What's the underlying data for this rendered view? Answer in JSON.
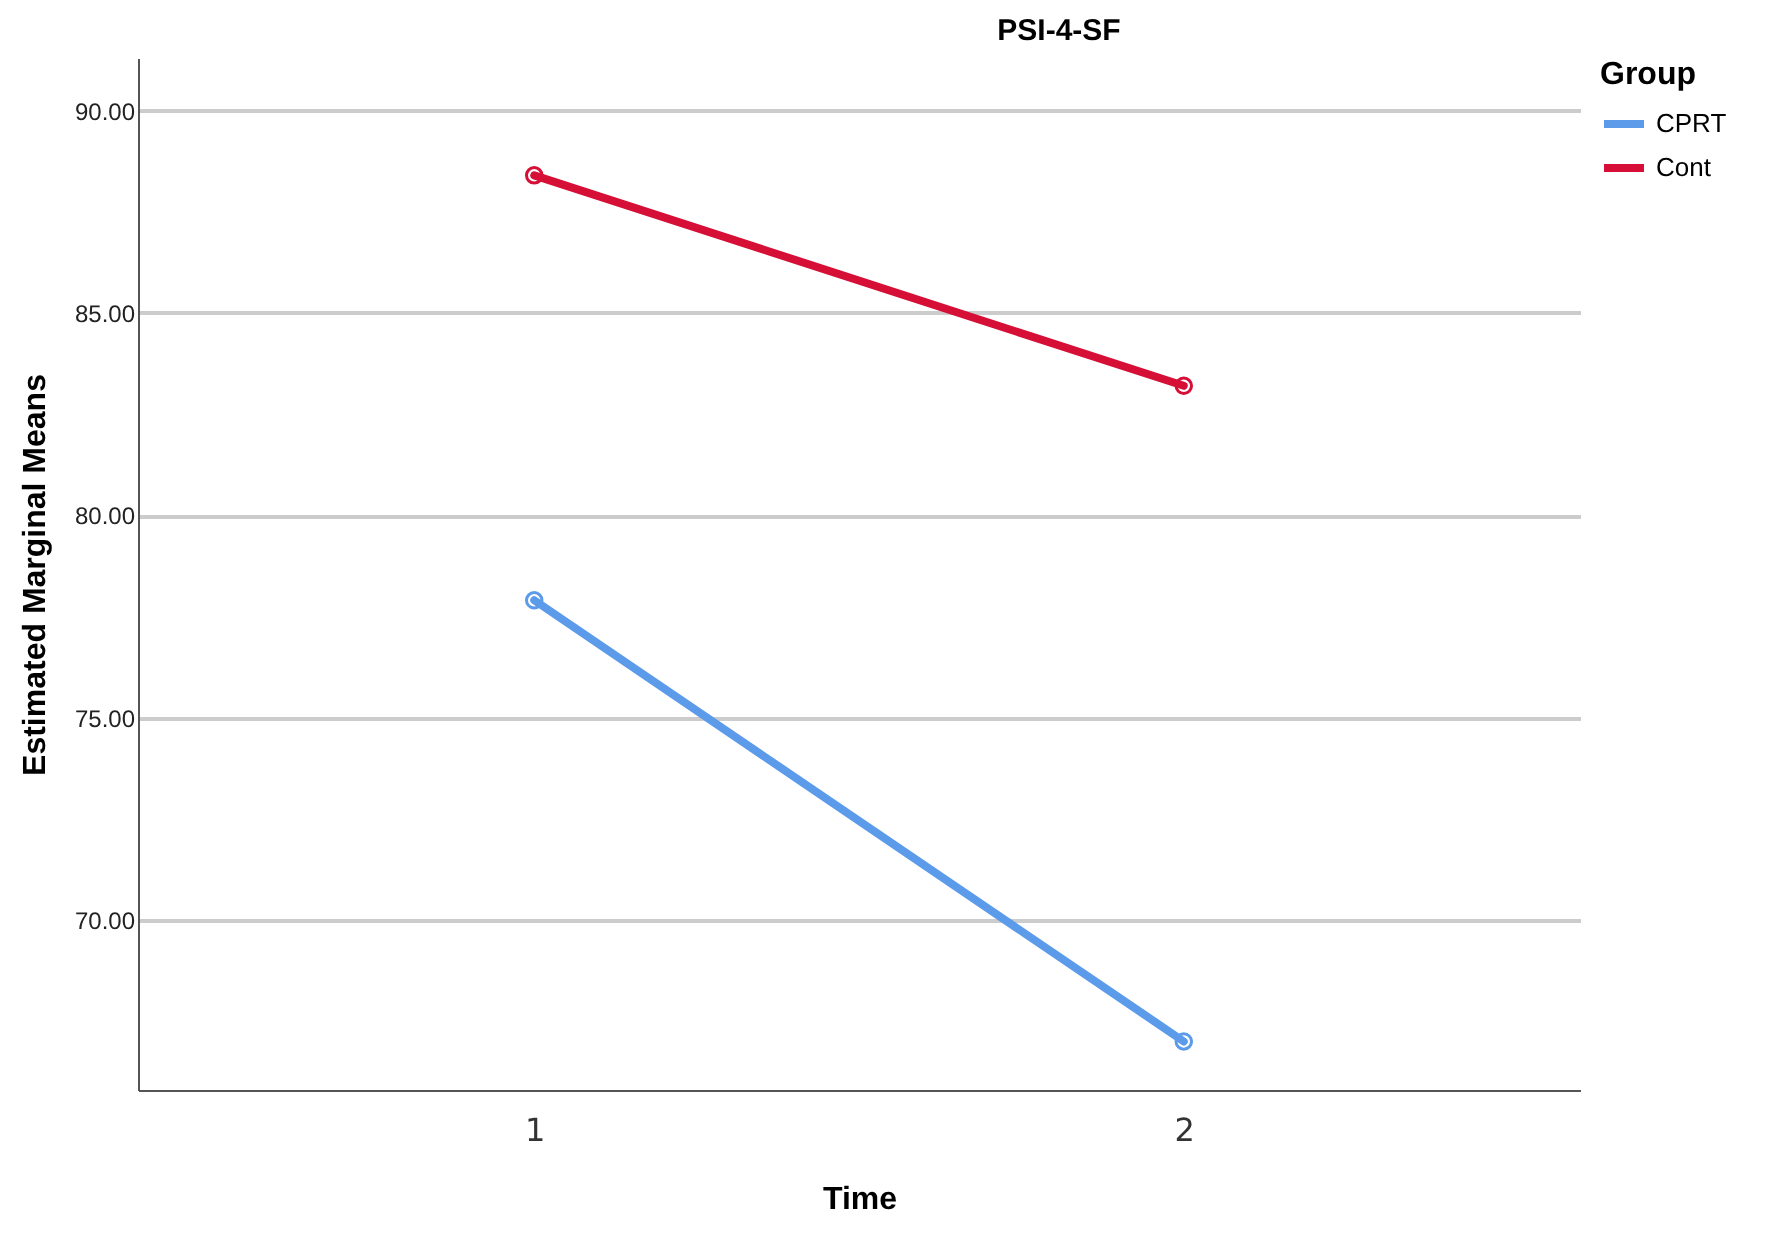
{
  "chart_data": {
    "type": "line",
    "title": "PSI-4-SF",
    "xlabel": "Time",
    "ylabel": "Estimated Marginal Means",
    "legend_title": "Group",
    "categories": [
      "1",
      "2"
    ],
    "series": [
      {
        "name": "CPRT",
        "color": "#5b9bea",
        "values": [
          77.9,
          67.0
        ]
      },
      {
        "name": "Cont",
        "color": "#d50f36",
        "values": [
          88.4,
          83.2
        ]
      }
    ],
    "ylim": [
      65.8,
      91.3
    ],
    "yticks": [
      {
        "value": 70,
        "label": "70.00"
      },
      {
        "value": 75,
        "label": "75.00"
      },
      {
        "value": 80,
        "label": "80.00"
      },
      {
        "value": 85,
        "label": "85.00"
      },
      {
        "value": 90,
        "label": "90.00"
      }
    ],
    "grid": "y",
    "legend": "top right",
    "marker": "circle",
    "line_style": "solid"
  }
}
